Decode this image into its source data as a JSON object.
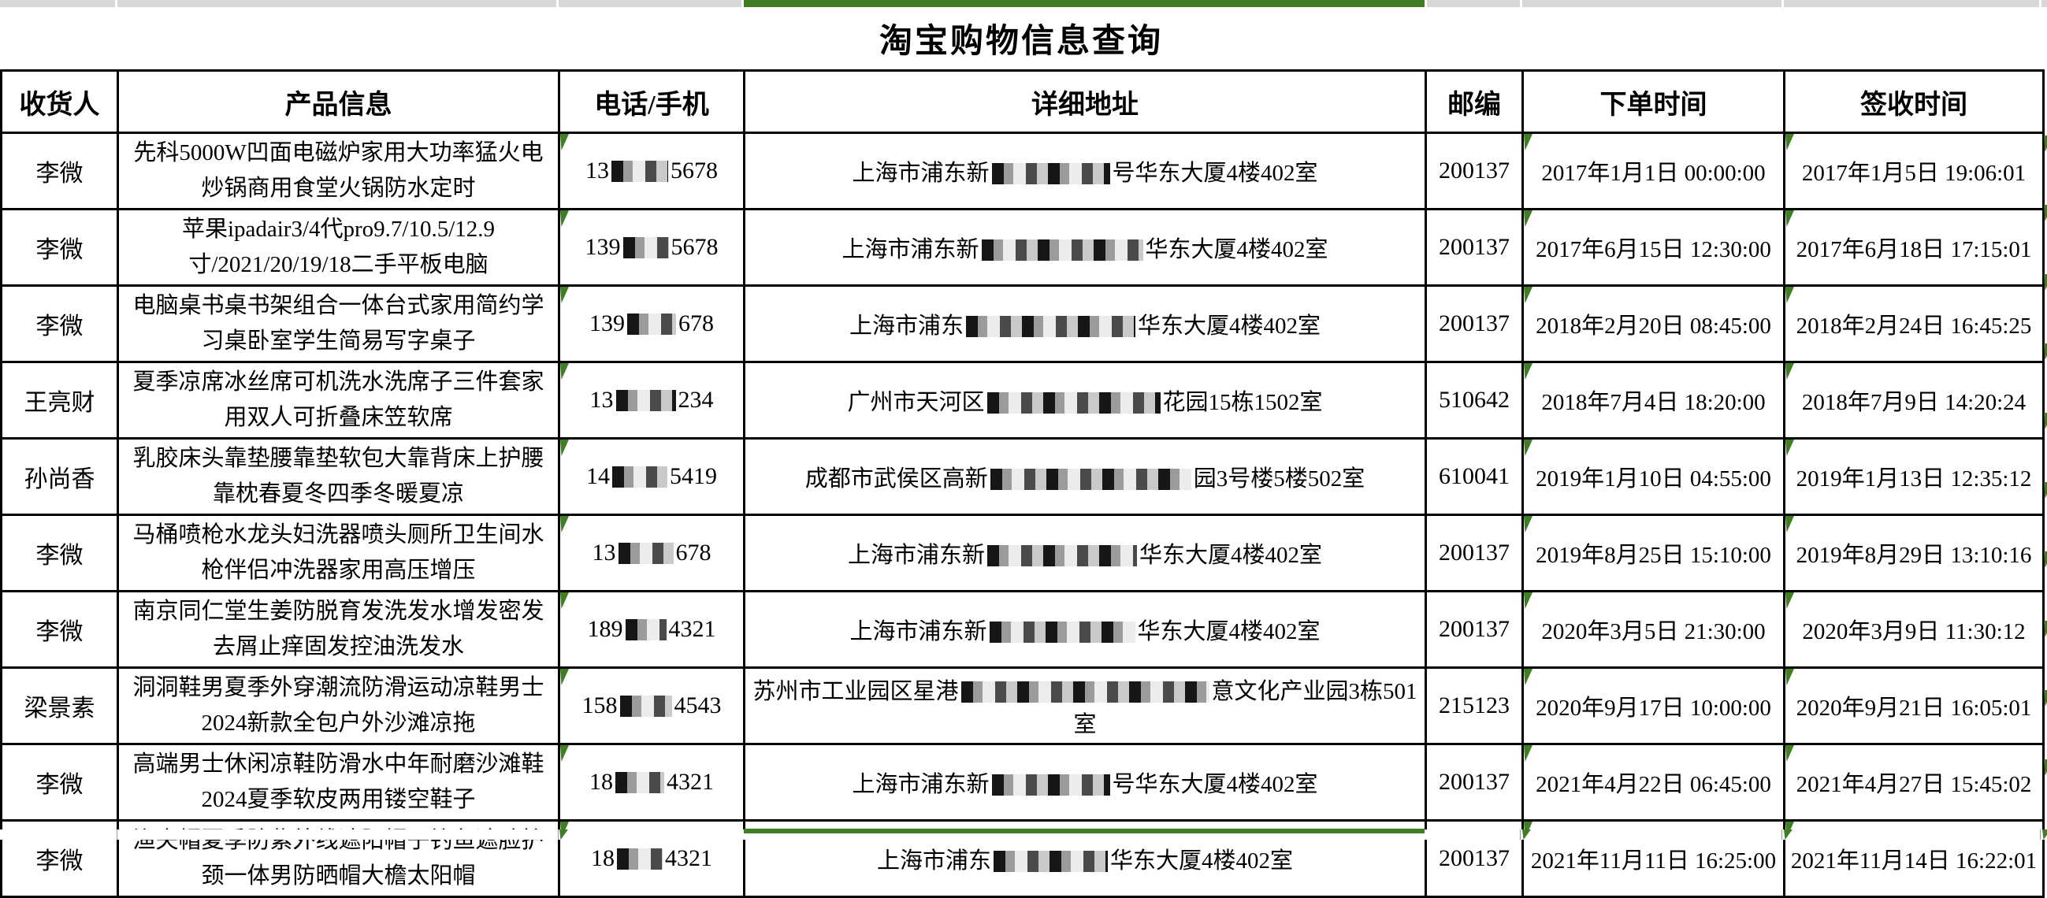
{
  "app": {
    "title": "淘宝购物信息查询"
  },
  "colors": {
    "green": "#3f7e23",
    "strip_gray": "#d8d8d8",
    "border": "#000000"
  },
  "table": {
    "headers": [
      "收货人",
      "产品信息",
      "电话/手机",
      "详细地址",
      "邮编",
      "下单时间",
      "签收时间"
    ],
    "rows": [
      {
        "recipient": "李微",
        "product": "先科5000W凹面电磁炉家用大功率猛火电炒锅商用食堂火锅防水定时",
        "phone_prefix": "13",
        "phone_suffix": "5678",
        "phone_redact_w": 72,
        "addr_prefix": "上海市浦东新",
        "addr_suffix": "号华东大厦4楼402室",
        "addr_redact_w": 150,
        "zip": "200137",
        "order_time": "2017年1月1日 00:00:00",
        "sign_time": "2017年1月5日 19:06:01"
      },
      {
        "recipient": "李微",
        "product": "苹果ipadair3/4代pro9.7/10.5/12.9寸/2021/20/19/18二手平板电脑",
        "phone_prefix": "139",
        "phone_suffix": "5678",
        "phone_redact_w": 58,
        "addr_prefix": "上海市浦东新",
        "addr_suffix": "华东大厦4楼402室",
        "addr_redact_w": 205,
        "zip": "200137",
        "order_time": "2017年6月15日 12:30:00",
        "sign_time": "2017年6月18日 17:15:01"
      },
      {
        "recipient": "李微",
        "product": "电脑桌书桌书架组合一体台式家用简约学习桌卧室学生简易写字桌子",
        "phone_prefix": "139",
        "phone_suffix": "678",
        "phone_redact_w": 62,
        "addr_prefix": "上海市浦东",
        "addr_suffix": "华东大厦4楼402室",
        "addr_redact_w": 215,
        "zip": "200137",
        "order_time": "2018年2月20日 08:45:00",
        "sign_time": "2018年2月24日 16:45:25"
      },
      {
        "recipient": "王亮财",
        "product": "夏季凉席冰丝席可机洗水洗席子三件套家用双人可折叠床笠软席",
        "phone_prefix": "13",
        "phone_suffix": "234",
        "phone_redact_w": 76,
        "addr_prefix": "广州市天河区",
        "addr_suffix": "花园15栋1502室",
        "addr_redact_w": 220,
        "zip": "510642",
        "order_time": "2018年7月4日 18:20:00",
        "sign_time": "2018年7月9日 14:20:24"
      },
      {
        "recipient": "孙尚香",
        "product": "乳胶床头靠垫腰靠垫软包大靠背床上护腰靠枕春夏冬四季冬暖夏凉",
        "phone_prefix": "14",
        "phone_suffix": "5419",
        "phone_redact_w": 70,
        "addr_prefix": "成都市武侯区高新",
        "addr_suffix": "园3号楼5楼502室",
        "addr_redact_w": 255,
        "zip": "610041",
        "order_time": "2019年1月10日 04:55:00",
        "sign_time": "2019年1月13日 12:35:12"
      },
      {
        "recipient": "李微",
        "product": "马桶喷枪水龙头妇洗器喷头厕所卫生间水枪伴侣冲洗器家用高压增压",
        "phone_prefix": "13",
        "phone_suffix": "678",
        "phone_redact_w": 70,
        "addr_prefix": "上海市浦东新",
        "addr_suffix": "华东大厦4楼402室",
        "addr_redact_w": 190,
        "zip": "200137",
        "order_time": "2019年8月25日 15:10:00",
        "sign_time": "2019年8月29日 13:10:16"
      },
      {
        "recipient": "李微",
        "product": "南京同仁堂生姜防脱育发洗发水增发密发去屑止痒固发控油洗发水",
        "phone_prefix": "189",
        "phone_suffix": "4321",
        "phone_redact_w": 52,
        "addr_prefix": "上海市浦东新",
        "addr_suffix": "华东大厦4楼402室",
        "addr_redact_w": 185,
        "zip": "200137",
        "order_time": "2020年3月5日 21:30:00",
        "sign_time": "2020年3月9日 11:30:12"
      },
      {
        "recipient": "梁景素",
        "product": "洞洞鞋男夏季外穿潮流防滑运动凉鞋男士2024新款全包户外沙滩凉拖",
        "phone_prefix": "158",
        "phone_suffix": "4543",
        "phone_redact_w": 66,
        "addr_prefix": "苏州市工业园区星港",
        "addr_suffix": "意文化产业园3栋501室",
        "addr_redact_w": 315,
        "zip": "215123",
        "order_time": "2020年9月17日 10:00:00",
        "sign_time": "2020年9月21日 16:05:01"
      },
      {
        "recipient": "李微",
        "product": "高端男士休闲凉鞋防滑水中年耐磨沙滩鞋2024夏季软皮两用镂空鞋子",
        "phone_prefix": "18",
        "phone_suffix": "4321",
        "phone_redact_w": 62,
        "addr_prefix": "上海市浦东新",
        "addr_suffix": "号华东大厦4楼402室",
        "addr_redact_w": 150,
        "zip": "200137",
        "order_time": "2021年4月22日 06:45:00",
        "sign_time": "2021年4月27日 15:45:02"
      },
      {
        "recipient": "李微",
        "product": "渔夫帽夏季防紫外线遮阳帽子钓鱼遮脸护颈一体男防晒帽大檐太阳帽",
        "phone_prefix": "18",
        "phone_suffix": "4321",
        "phone_redact_w": 58,
        "addr_prefix": "上海市浦东",
        "addr_suffix": "华东大厦4楼402室",
        "addr_redact_w": 145,
        "zip": "200137",
        "order_time": "2021年11月11日 16:25:00",
        "sign_time": "2021年11月14日 16:22:01"
      }
    ]
  }
}
